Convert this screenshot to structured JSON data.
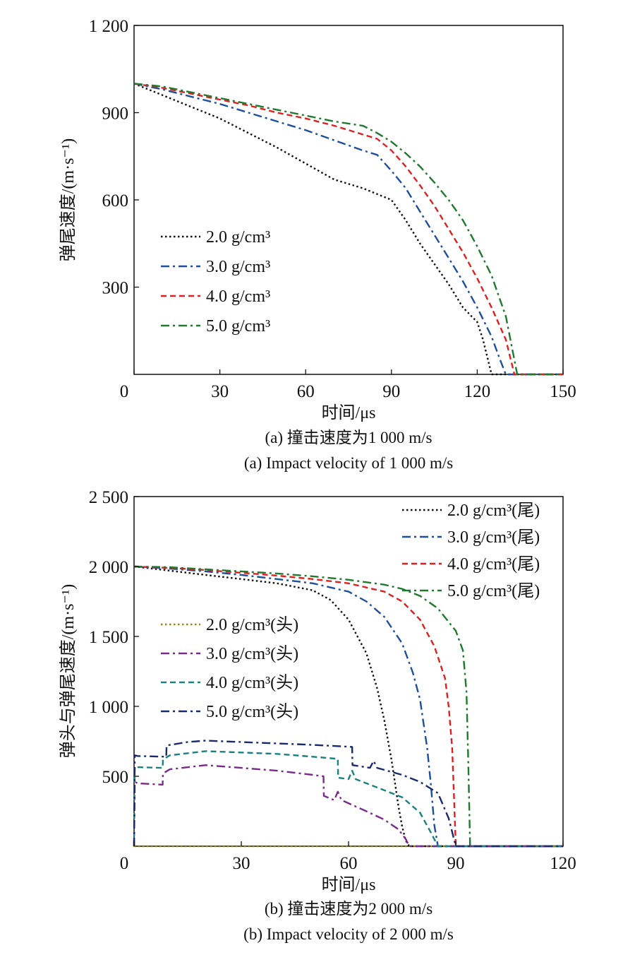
{
  "chart_data": [
    {
      "type": "line",
      "xlabel": "时间/μs",
      "ylabel": "弹尾速度/(m·s⁻¹)",
      "xlim": [
        0,
        150
      ],
      "ylim": [
        0,
        1200
      ],
      "xticks": [
        "0",
        "30",
        "60",
        "90",
        "120",
        "150"
      ],
      "yticks": [
        "300",
        "600",
        "900",
        "1 200"
      ],
      "grid": false,
      "legend_position": "left-bottom",
      "caption_cn": "(a) 撞击速度为1 000 m/s",
      "caption_en": "(a) Impact velocity of 1 000 m/s",
      "series": [
        {
          "name": "2.0 g/cm³",
          "color": "#111111",
          "dash": "dotted",
          "x": [
            0,
            10,
            20,
            30,
            40,
            50,
            60,
            70,
            80,
            90,
            95,
            100,
            105,
            110,
            115,
            120,
            122,
            124,
            125,
            150
          ],
          "y": [
            1000,
            960,
            920,
            880,
            830,
            780,
            725,
            670,
            640,
            600,
            530,
            450,
            380,
            310,
            230,
            180,
            120,
            40,
            0,
            0
          ]
        },
        {
          "name": "3.0 g/cm³",
          "color": "#1f4e9e",
          "dash": "dashdot",
          "x": [
            0,
            10,
            20,
            30,
            40,
            50,
            60,
            70,
            80,
            85,
            90,
            95,
            100,
            105,
            110,
            115,
            120,
            125,
            128,
            130,
            150
          ],
          "y": [
            1000,
            980,
            955,
            930,
            900,
            870,
            840,
            805,
            770,
            755,
            700,
            640,
            560,
            480,
            400,
            320,
            230,
            130,
            50,
            0,
            0
          ]
        },
        {
          "name": "4.0 g/cm³",
          "color": "#e02020",
          "dash": "dashed",
          "x": [
            0,
            10,
            20,
            30,
            40,
            50,
            60,
            70,
            80,
            85,
            90,
            95,
            100,
            105,
            110,
            115,
            120,
            125,
            130,
            133,
            150
          ],
          "y": [
            1000,
            985,
            965,
            945,
            925,
            900,
            880,
            855,
            825,
            810,
            770,
            715,
            650,
            580,
            500,
            420,
            330,
            230,
            120,
            0,
            0
          ]
        },
        {
          "name": "5.0 g/cm³",
          "color": "#1f7a2e",
          "dash": "dashdot",
          "x": [
            0,
            10,
            20,
            30,
            40,
            50,
            60,
            70,
            80,
            85,
            90,
            95,
            100,
            105,
            110,
            115,
            120,
            125,
            130,
            134,
            150
          ],
          "y": [
            1000,
            990,
            970,
            950,
            930,
            910,
            890,
            870,
            855,
            830,
            800,
            760,
            715,
            660,
            600,
            530,
            440,
            340,
            200,
            0,
            0
          ]
        }
      ]
    },
    {
      "type": "line",
      "xlabel": "时间/μs",
      "ylabel": "弹头与弹尾速度/(m·s⁻¹)",
      "xlim": [
        0,
        120
      ],
      "ylim": [
        0,
        2500
      ],
      "xticks": [
        "0",
        "30",
        "60",
        "90",
        "120"
      ],
      "yticks": [
        "500",
        "1 000",
        "1 500",
        "2 000",
        "2 500"
      ],
      "grid": false,
      "legend_position": "top-right and center-left",
      "caption_cn": "(b) 撞击速度为2 000 m/s",
      "caption_en": "(b) Impact velocity of 2 000 m/s",
      "series": [
        {
          "name": "2.0 g/cm³(尾)",
          "color": "#111111",
          "dash": "dotted",
          "x": [
            0,
            10,
            20,
            30,
            40,
            50,
            55,
            60,
            65,
            68,
            70,
            72,
            73,
            74,
            75,
            76,
            77,
            120
          ],
          "y": [
            2000,
            1970,
            1940,
            1910,
            1880,
            1830,
            1760,
            1620,
            1380,
            1130,
            900,
            620,
            450,
            280,
            140,
            40,
            0,
            0
          ]
        },
        {
          "name": "3.0 g/cm³(尾)",
          "color": "#1f4e9e",
          "dash": "dashdot",
          "x": [
            0,
            10,
            20,
            30,
            40,
            50,
            60,
            65,
            70,
            75,
            78,
            80,
            82,
            83,
            84,
            85,
            120
          ],
          "y": [
            2000,
            1985,
            1965,
            1940,
            1910,
            1880,
            1820,
            1750,
            1640,
            1450,
            1240,
            1050,
            700,
            450,
            150,
            0,
            0
          ]
        },
        {
          "name": "4.0 g/cm³(尾)",
          "color": "#e02020",
          "dash": "dashed",
          "x": [
            0,
            10,
            20,
            30,
            40,
            50,
            60,
            70,
            75,
            80,
            84,
            87,
            88,
            89,
            89.5,
            90,
            120
          ],
          "y": [
            2000,
            1990,
            1975,
            1955,
            1935,
            1910,
            1880,
            1820,
            1750,
            1620,
            1430,
            1200,
            1000,
            700,
            350,
            0,
            0
          ]
        },
        {
          "name": "5.0 g/cm³(尾)",
          "color": "#1f7a2e",
          "dash": "dashdot",
          "x": [
            0,
            10,
            20,
            30,
            40,
            50,
            60,
            70,
            75,
            80,
            85,
            90,
            92,
            93,
            93.5,
            94,
            120
          ],
          "y": [
            2000,
            1995,
            1980,
            1965,
            1950,
            1930,
            1905,
            1870,
            1840,
            1790,
            1700,
            1540,
            1400,
            1100,
            600,
            0,
            0
          ]
        },
        {
          "name": "2.0 g/cm³(头)",
          "color": "#8a8a1a",
          "dash": "dotted",
          "x": [
            0,
            120
          ],
          "y": [
            0,
            0
          ]
        },
        {
          "name": "3.0 g/cm³(头)",
          "color": "#7a2a8a",
          "dash": "dashdot",
          "x": [
            0,
            0.2,
            1,
            8,
            8.1,
            10,
            20,
            30,
            40,
            50,
            53,
            53.1,
            56,
            57,
            58,
            65,
            70,
            74,
            76,
            77,
            120
          ],
          "y": [
            0,
            460,
            450,
            440,
            520,
            550,
            580,
            560,
            540,
            510,
            500,
            360,
            330,
            390,
            330,
            250,
            190,
            120,
            50,
            0,
            0
          ]
        },
        {
          "name": "4.0 g/cm³(头)",
          "color": "#1a8080",
          "dash": "dashed",
          "x": [
            0,
            0.2,
            1,
            8,
            8.1,
            10,
            20,
            30,
            40,
            50,
            57,
            57.1,
            60,
            61,
            62,
            70,
            75,
            80,
            83,
            85,
            120
          ],
          "y": [
            0,
            570,
            565,
            560,
            620,
            650,
            680,
            670,
            660,
            640,
            625,
            490,
            480,
            540,
            480,
            400,
            350,
            240,
            100,
            0,
            0
          ]
        },
        {
          "name": "5.0 g/cm³(头)",
          "color": "#1a2a6e",
          "dash": "dashdot",
          "x": [
            0,
            0.2,
            1,
            9,
            9.1,
            15,
            20,
            30,
            40,
            50,
            61,
            61.1,
            66,
            67,
            68,
            75,
            80,
            85,
            88,
            90,
            120
          ],
          "y": [
            0,
            650,
            645,
            640,
            720,
            745,
            755,
            745,
            735,
            725,
            710,
            580,
            560,
            610,
            560,
            510,
            460,
            380,
            200,
            0,
            0
          ]
        }
      ]
    }
  ],
  "style": {
    "axis_color": "#111111",
    "background": "#ffffff"
  }
}
